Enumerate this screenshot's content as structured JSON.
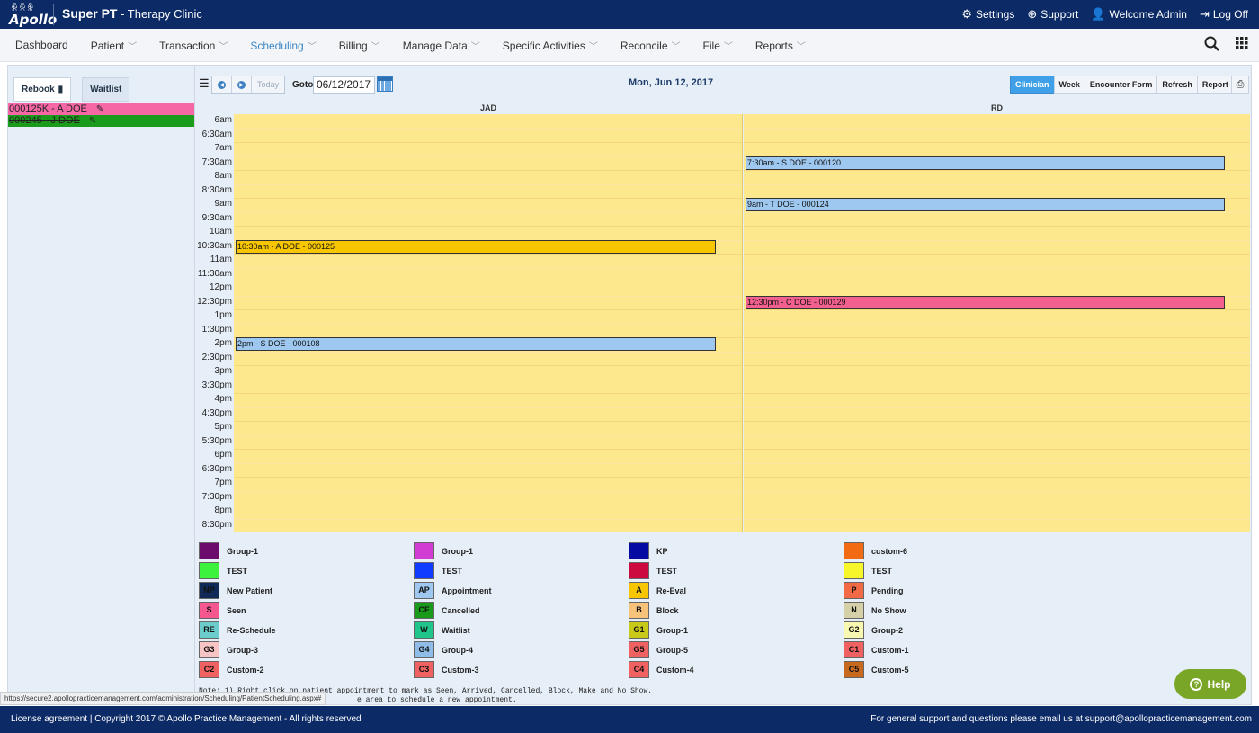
{
  "header": {
    "logo_text": "Apollo",
    "app_name": "Super PT",
    "clinic": " - Therapy Clinic",
    "settings": "Settings",
    "support": "Support",
    "welcome": "Welcome Admin",
    "logoff": "Log Off"
  },
  "menu": {
    "dashboard": "Dashboard",
    "patient": "Patient",
    "transaction": "Transaction",
    "scheduling": "Scheduling",
    "billing": "Billing",
    "manage_data": "Manage Data",
    "specific_activities": "Specific Activities",
    "reconcile": "Reconcile",
    "file": "File",
    "reports": "Reports"
  },
  "left": {
    "tab_rebook": "Rebook",
    "tab_waitlist": "Waitlist",
    "rebook_items": [
      "000125K - A DOE",
      "000245 - J DOE"
    ]
  },
  "toolbar": {
    "today": "Today",
    "goto_label": "Goto:",
    "goto_value": "06/12/2017",
    "date_title": "Mon, Jun 12, 2017",
    "btn_clinician": "Clinician",
    "btn_week": "Week",
    "btn_encounter": "Encounter Form",
    "btn_refresh": "Refresh",
    "btn_report": "Report"
  },
  "schedule": {
    "columns": [
      "JAD",
      "RD"
    ],
    "times": [
      "6am",
      "6:30am",
      "7am",
      "7:30am",
      "8am",
      "8:30am",
      "9am",
      "9:30am",
      "10am",
      "10:30am",
      "11am",
      "11:30am",
      "12pm",
      "12:30pm",
      "1pm",
      "1:30pm",
      "2pm",
      "2:30pm",
      "3pm",
      "3:30pm",
      "4pm",
      "4:30pm",
      "5pm",
      "5:30pm",
      "6pm",
      "6:30pm",
      "7pm",
      "7:30pm",
      "8pm",
      "8:30pm"
    ],
    "appointments": [
      {
        "label": "7:30am - S DOE - 000120",
        "column": "RD",
        "start": "7:30am",
        "color": "#9ec8ef"
      },
      {
        "label": "9am - T DOE - 000124",
        "column": "RD",
        "start": "9am",
        "color": "#9ec8ef"
      },
      {
        "label": "10:30am - A DOE - 000125",
        "column": "JAD",
        "start": "10:30am",
        "color": "#f7c600"
      },
      {
        "label": "12:30pm - C DOE - 000129",
        "column": "RD",
        "start": "12:30pm",
        "color": "#f2608f"
      },
      {
        "label": "2pm - S DOE - 000108",
        "column": "JAD",
        "start": "2pm",
        "color": "#9ec8ef"
      }
    ]
  },
  "legend": [
    [
      {
        "code": "",
        "label": "Group-1",
        "color": "#6b0b6b"
      },
      {
        "code": "",
        "label": "TEST",
        "color": "#3df23d"
      },
      {
        "code": "NP",
        "label": "New Patient",
        "color": "#0f2a57"
      },
      {
        "code": "S",
        "label": "Seen",
        "color": "#f5588e"
      },
      {
        "code": "RE",
        "label": "Re-Schedule",
        "color": "#6ccbcb"
      },
      {
        "code": "G3",
        "label": "Group-3",
        "color": "#f8c4c4"
      },
      {
        "code": "C2",
        "label": "Custom-2",
        "color": "#f06262"
      }
    ],
    [
      {
        "code": "",
        "label": "Group-1",
        "color": "#d23cd2"
      },
      {
        "code": "",
        "label": "TEST",
        "color": "#0f3cff"
      },
      {
        "code": "AP",
        "label": "Appointment",
        "color": "#9ec8ef"
      },
      {
        "code": "CF",
        "label": "Cancelled",
        "color": "#1a9a1a"
      },
      {
        "code": "W",
        "label": "Waitlist",
        "color": "#1fc58a"
      },
      {
        "code": "G4",
        "label": "Group-4",
        "color": "#8fbde8"
      },
      {
        "code": "C3",
        "label": "Custom-3",
        "color": "#f06262"
      }
    ],
    [
      {
        "code": "",
        "label": "KP",
        "color": "#050ba0"
      },
      {
        "code": "",
        "label": "TEST",
        "color": "#cc0a40"
      },
      {
        "code": "A",
        "label": "Re-Eval",
        "color": "#f7c600"
      },
      {
        "code": "B",
        "label": "Block",
        "color": "#f7c27a"
      },
      {
        "code": "G1",
        "label": "Group-1",
        "color": "#c9c91a"
      },
      {
        "code": "G5",
        "label": "Group-5",
        "color": "#f06262"
      },
      {
        "code": "C4",
        "label": "Custom-4",
        "color": "#f06262"
      }
    ],
    [
      {
        "code": "",
        "label": "custom-6",
        "color": "#f26a12"
      },
      {
        "code": "",
        "label": "TEST",
        "color": "#f6f62a"
      },
      {
        "code": "P",
        "label": "Pending",
        "color": "#f26a45"
      },
      {
        "code": "N",
        "label": "No Show",
        "color": "#d6d0a8"
      },
      {
        "code": "G2",
        "label": "Group-2",
        "color": "#f8f8b0"
      },
      {
        "code": "C1",
        "label": "Custom-1",
        "color": "#f06262"
      },
      {
        "code": "C5",
        "label": "Custom-5",
        "color": "#c86a1e"
      }
    ]
  ],
  "note_line1": "Note: 1) Right click on patient appointment to mark as Seen, Arrived, Cancelled, Block, Make and No Show.",
  "note_line2": "e area to schedule a new appointment.",
  "status_url": "https://secure2.apollopracticemanagement.com/administration/Scheduling/PatientScheduling.aspx#",
  "help": "Help",
  "footer": {
    "left": "License agreement | Copyright 2017 © Apollo Practice Management - All rights reserved",
    "right": "For general support and questions please email us at support@apollopracticemanagement.com"
  }
}
